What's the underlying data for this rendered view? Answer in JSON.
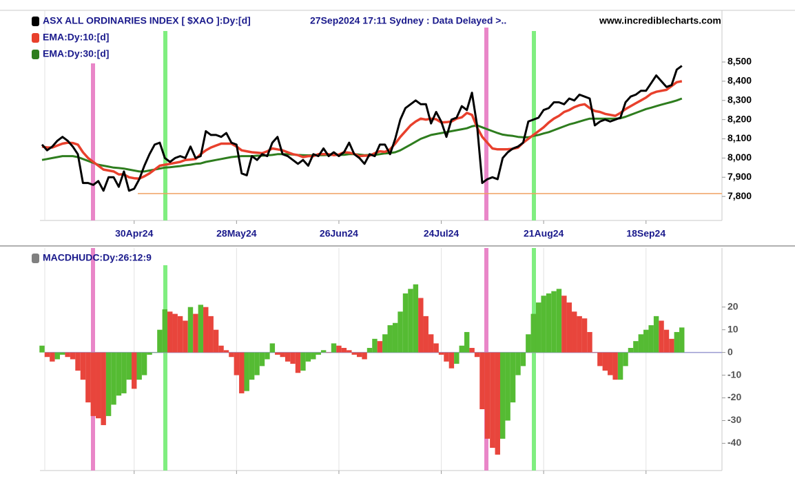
{
  "chart_data": [
    {
      "type": "line",
      "subtitle": "27Sep2024 17:11  Sydney : Data Delayed >..",
      "source": "www.incrediblecharts.com",
      "categories": [
        null,
        null,
        null,
        null,
        null,
        null,
        null,
        null,
        null,
        null,
        null,
        null,
        null,
        null,
        null,
        null,
        null,
        null,
        "30Apr24",
        null,
        null,
        null,
        null,
        null,
        null,
        null,
        null,
        null,
        null,
        null,
        null,
        null,
        null,
        null,
        null,
        null,
        null,
        null,
        "28May24",
        null,
        null,
        null,
        null,
        null,
        null,
        null,
        null,
        null,
        null,
        null,
        null,
        null,
        null,
        null,
        null,
        null,
        null,
        null,
        "26Jun24",
        null,
        null,
        null,
        null,
        null,
        null,
        null,
        null,
        null,
        null,
        null,
        null,
        null,
        null,
        null,
        null,
        null,
        null,
        null,
        "24Jul24",
        null,
        null,
        null,
        null,
        null,
        null,
        null,
        null,
        null,
        null,
        null,
        null,
        null,
        null,
        null,
        null,
        null,
        null,
        null,
        "21Aug24",
        null,
        null,
        null,
        null,
        null,
        null,
        null,
        null,
        null,
        null,
        null,
        null,
        null,
        null,
        null,
        null,
        null,
        null,
        null,
        "18Sep24",
        null,
        null,
        null,
        null,
        null,
        null,
        null
      ],
      "series": [
        {
          "name": "ASX ALL ORDINARIES INDEX [ $XAO ]:Dy:[d]",
          "color": "#000000",
          "width": 3,
          "values": [
            8070,
            8040,
            8060,
            8090,
            8110,
            8090,
            8060,
            8020,
            7870,
            7870,
            7860,
            7880,
            7830,
            7900,
            7900,
            7850,
            7930,
            7830,
            7840,
            7890,
            7960,
            8020,
            8070,
            8080,
            8000,
            7980,
            8000,
            8010,
            8000,
            8060,
            8000,
            8010,
            8140,
            8120,
            8120,
            8110,
            8130,
            8080,
            8070,
            7920,
            7910,
            8010,
            7990,
            8020,
            8010,
            8080,
            8110,
            8020,
            8010,
            7990,
            7970,
            7990,
            7960,
            8020,
            8010,
            8050,
            8010,
            8030,
            8010,
            8030,
            8080,
            8020,
            8000,
            7970,
            8020,
            8010,
            8070,
            8070,
            8020,
            8100,
            8200,
            8260,
            8280,
            8300,
            8280,
            8280,
            8180,
            8240,
            8190,
            8110,
            8200,
            8210,
            8270,
            8250,
            8340,
            8170,
            7870,
            7890,
            7900,
            7890,
            8000,
            8030,
            8050,
            8060,
            8080,
            8190,
            8200,
            8210,
            8250,
            8260,
            8290,
            8290,
            8280,
            8310,
            8300,
            8330,
            8320,
            8310,
            8170,
            8190,
            8200,
            8190,
            8200,
            8210,
            8290,
            8320,
            8330,
            8350,
            8350,
            8390,
            8430,
            8400,
            8370,
            8380,
            8460,
            8480
          ]
        },
        {
          "name": "EMA:Dy:10:[d]",
          "color": "#e8402c",
          "width": 3.5,
          "values": [
            8060,
            8055,
            8055,
            8065,
            8075,
            8080,
            8078,
            8070,
            8030,
            8000,
            7980,
            7960,
            7940,
            7935,
            7930,
            7915,
            7915,
            7900,
            7895,
            7893,
            7905,
            7920,
            7940,
            7960,
            7965,
            7970,
            7975,
            7980,
            7990,
            7992,
            7995,
            8020,
            8040,
            8055,
            8065,
            8075,
            8075,
            8075,
            8060,
            8040,
            8035,
            8030,
            8028,
            8025,
            8035,
            8050,
            8045,
            8040,
            8030,
            8020,
            8015,
            8005,
            8010,
            8010,
            8020,
            8020,
            8020,
            8015,
            8018,
            8030,
            8028,
            8022,
            8010,
            8012,
            8012,
            8025,
            8035,
            8032,
            8045,
            8075,
            8110,
            8140,
            8170,
            8190,
            8205,
            8200,
            8205,
            8202,
            8185,
            8187,
            8190,
            8205,
            8212,
            8235,
            8225,
            8160,
            8110,
            8080,
            8050,
            8045,
            8045,
            8046,
            8048,
            8054,
            8080,
            8100,
            8120,
            8140,
            8160,
            8185,
            8205,
            8220,
            8240,
            8250,
            8265,
            8275,
            8280,
            8260,
            8245,
            8240,
            8230,
            8225,
            8220,
            8235,
            8255,
            8270,
            8285,
            8300,
            8315,
            8335,
            8345,
            8350,
            8355,
            8375,
            8395,
            8400
          ]
        },
        {
          "name": "EMA:Dy:30:[d]",
          "color": "#2e7d1e",
          "width": 3,
          "values": [
            7990,
            7995,
            8000,
            8005,
            8010,
            8010,
            8010,
            8005,
            7995,
            7985,
            7975,
            7965,
            7960,
            7955,
            7950,
            7948,
            7945,
            7940,
            7935,
            7930,
            7930,
            7935,
            7940,
            7945,
            7950,
            7952,
            7955,
            7958,
            7962,
            7965,
            7970,
            7972,
            7980,
            7985,
            7990,
            7995,
            8000,
            8005,
            8008,
            8010,
            8010,
            8010,
            8012,
            8012,
            8014,
            8016,
            8020,
            8020,
            8020,
            8018,
            8016,
            8015,
            8014,
            8014,
            8015,
            8015,
            8016,
            8016,
            8016,
            8017,
            8020,
            8020,
            8018,
            8015,
            8016,
            8016,
            8020,
            8024,
            8026,
            8030,
            8040,
            8055,
            8070,
            8085,
            8100,
            8110,
            8120,
            8125,
            8130,
            8135,
            8140,
            8145,
            8150,
            8155,
            8165,
            8170,
            8160,
            8150,
            8140,
            8130,
            8122,
            8118,
            8115,
            8110,
            8108,
            8108,
            8115,
            8120,
            8128,
            8135,
            8145,
            8155,
            8165,
            8175,
            8182,
            8190,
            8198,
            8205,
            8205,
            8205,
            8205,
            8205,
            8205,
            8207,
            8215,
            8225,
            8235,
            8245,
            8255,
            8262,
            8270,
            8278,
            8285,
            8292,
            8300,
            8310
          ]
        }
      ],
      "reference_line": {
        "value": 7815,
        "color": "#f0a060"
      },
      "ylim": [
        7675,
        8769
      ],
      "yticks": [
        {
          "value": 7800,
          "label": "7,800"
        },
        {
          "value": 7900,
          "label": "7,900"
        },
        {
          "value": 8000,
          "label": "8,000"
        },
        {
          "value": 8100,
          "label": "8,100"
        },
        {
          "value": 8200,
          "label": "8,200"
        },
        {
          "value": 8300,
          "label": "8,300"
        },
        {
          "value": 8400,
          "label": "8,400"
        },
        {
          "value": 8500,
          "label": "8,500"
        }
      ]
    },
    {
      "type": "bar",
      "series": [
        {
          "name": "MACDHUDC:Dy:26:12:9",
          "color": "#808080",
          "values": [
            3,
            -2,
            -4,
            -3,
            -1,
            -2,
            -3,
            -8,
            -12,
            -22,
            -28,
            -29,
            -32,
            -28,
            -23,
            -19,
            -18,
            -12,
            -16,
            -12,
            -10,
            -1,
            0,
            10,
            19,
            18,
            17,
            16,
            14,
            20,
            17,
            21,
            20,
            16,
            10,
            3,
            1,
            -2,
            -10,
            -18,
            -17,
            -12,
            -10,
            -6,
            -3,
            4,
            -1,
            -2,
            -4,
            -5,
            -9,
            -8,
            -4,
            -3,
            -1,
            1,
            0,
            4,
            3,
            2,
            1,
            -1,
            -2,
            -3,
            2,
            6,
            5,
            8,
            12,
            13,
            18,
            26,
            28,
            30,
            24,
            16,
            8,
            4,
            -1,
            -4,
            -7,
            -5,
            3,
            9,
            2,
            -2,
            -25,
            -38,
            -42,
            -45,
            -38,
            -30,
            -22,
            -10,
            -6,
            8,
            17,
            22,
            25,
            26,
            27,
            28,
            25,
            22,
            18,
            16,
            15,
            9,
            0,
            -6,
            -8,
            -10,
            -12,
            -12,
            -6,
            2,
            5,
            8,
            10,
            12,
            16,
            14,
            10,
            6,
            9,
            11
          ]
        }
      ],
      "up_color": "#55bb33",
      "down_color": "#e8453c",
      "zero_color": "#9a9ad0",
      "ylim": [
        -52,
        46
      ],
      "yticks": [
        -40,
        -30,
        -20,
        -10,
        0,
        10,
        20
      ]
    }
  ]
}
